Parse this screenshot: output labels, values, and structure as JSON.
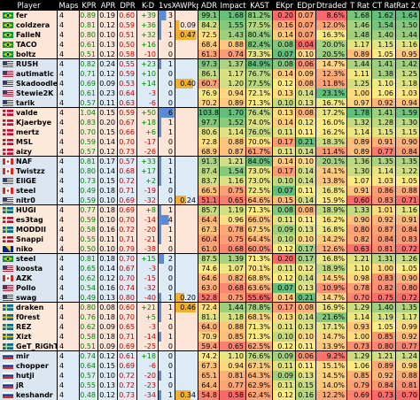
{
  "header": [
    "Player",
    "Maps",
    "KPR",
    "APR",
    "DPR",
    "K-D",
    "1vsX",
    "AWPkpr",
    "ADR",
    "Impact",
    "KAST",
    "EKpr",
    "EDpr",
    "Dtraded%",
    "T Rat",
    "CT Rat",
    "Rat 2.0"
  ],
  "players": [
    {
      "team": 1,
      "name": "fer",
      "flag": "br",
      "maps": "4",
      "kpr": "0.89",
      "apr": "0.19",
      "dpr": "0.60",
      "kd": "+39",
      "kds": "pos",
      "onevx": "3",
      "awp": "",
      "adr": "99.1",
      "impact": "1.68",
      "kast": "81.2%",
      "ekpr": "0.20",
      "edpr": "0.07",
      "dtr": "8.6%",
      "trat": "1.68",
      "ctrat": "1.62",
      "rat": "1.64"
    },
    {
      "team": 1,
      "name": "coldzera",
      "flag": "br",
      "maps": "4",
      "kpr": "0.81",
      "apr": "0.12",
      "dpr": "0.59",
      "kd": "+36",
      "kds": "pos",
      "onevx": "1",
      "awp": "0.09",
      "adr": "84.2",
      "impact": "1.55",
      "kast": "77.5%",
      "ekpr": "0.16",
      "edpr": "0.07",
      "dtr": "12.0%",
      "trat": "1.46",
      "ctrat": "1.54",
      "rat": "1.50"
    },
    {
      "team": 1,
      "name": "FalleN",
      "flag": "br",
      "maps": "4",
      "kpr": "0.80",
      "apr": "0.10",
      "dpr": "0.51",
      "kd": "+32",
      "kds": "pos",
      "onevx": "1",
      "awp": "0.47",
      "adr": "72.5",
      "impact": "1.43",
      "kast": "80.4%",
      "ekpr": "0.14",
      "edpr": "0.07",
      "dtr": "16.3%",
      "trat": "1.48",
      "ctrat": "1.40",
      "rat": "1.44"
    },
    {
      "team": 1,
      "name": "TACO",
      "flag": "br",
      "maps": "4",
      "kpr": "0.61",
      "apr": "0.13",
      "dpr": "0.50",
      "kd": "+16",
      "kds": "pos",
      "onevx": "0",
      "awp": "",
      "adr": "68.4",
      "impact": "0.88",
      "kast": "82.4%",
      "ekpr": "0.08",
      "edpr": "0.04",
      "dtr": "20.0%",
      "trat": "1.17",
      "ctrat": "1.15",
      "rat": "1.16"
    },
    {
      "team": 1,
      "name": "boltz",
      "flag": "br",
      "maps": "4",
      "kpr": "0.51",
      "apr": "0.12",
      "dpr": "0.58",
      "kd": "-10",
      "kds": "neg",
      "onevx": "0",
      "awp": "",
      "adr": "61.3",
      "impact": "0.74",
      "kast": "73.3%",
      "ekpr": "0.07",
      "edpr": "0.10",
      "dtr": "20.5%",
      "trat": "0.89",
      "ctrat": "1.05",
      "rat": "0.95"
    },
    {
      "team": 2,
      "name": "RUSH",
      "flag": "us",
      "maps": "4",
      "kpr": "0.82",
      "apr": "0.24",
      "dpr": "0.55",
      "kd": "+23",
      "kds": "pos",
      "onevx": "1",
      "awp": "",
      "adr": "97.3",
      "impact": "1.37",
      "kast": "84.9%",
      "ekpr": "0.08",
      "edpr": "0.06",
      "dtr": "14.7%",
      "trat": "1.44",
      "ctrat": "1.41",
      "rat": "1.42"
    },
    {
      "team": 2,
      "name": "autimatic",
      "flag": "us",
      "maps": "4",
      "kpr": "0.71",
      "apr": "0.12",
      "dpr": "0.59",
      "kd": "+10",
      "kds": "pos",
      "onevx": "0",
      "awp": "",
      "adr": "86.1",
      "impact": "1.17",
      "kast": "76.7%",
      "ekpr": "0.14",
      "edpr": "0.09",
      "dtr": "12.3%",
      "trat": "1.11",
      "ctrat": "1.38",
      "rat": "1.25"
    },
    {
      "team": 2,
      "name": "Skadoodle",
      "flag": "us",
      "maps": "4",
      "kpr": "0.69",
      "apr": "0.09",
      "dpr": "0.53",
      "kd": "+14",
      "kds": "pos",
      "onevx": "0",
      "awp": "0.40",
      "adr": "60.7",
      "impact": "1.20",
      "kast": "77.5%",
      "ekpr": "0.12",
      "edpr": "0.08",
      "dtr": "11.8%",
      "trat": "1.25",
      "ctrat": "1.10",
      "rat": "1.18"
    },
    {
      "team": 2,
      "name": "Stewie2K",
      "flag": "us",
      "maps": "4",
      "kpr": "0.61",
      "apr": "0.23",
      "dpr": "0.64",
      "kd": "-3",
      "kds": "neg",
      "onevx": "0",
      "awp": "",
      "adr": "76.9",
      "impact": "0.94",
      "kast": "72.1%",
      "ekpr": "0.13",
      "edpr": "0.14",
      "dtr": "23.1%",
      "trat": "1.00",
      "ctrat": "1.06",
      "rat": "1.03"
    },
    {
      "team": 2,
      "name": "tarik",
      "flag": "us",
      "maps": "4",
      "kpr": "0.57",
      "apr": "0.11",
      "dpr": "0.63",
      "kd": "-6",
      "kds": "neg",
      "onevx": "0",
      "awp": "",
      "adr": "70.2",
      "impact": "0.89",
      "kast": "71.3%",
      "ekpr": "0.10",
      "edpr": "0.13",
      "dtr": "16.7%",
      "trat": "0.97",
      "ctrat": "0.92",
      "rat": "0.94"
    },
    {
      "team": 3,
      "name": "valde",
      "flag": "dk",
      "maps": "4",
      "kpr": "1.04",
      "apr": "0.15",
      "dpr": "0.59",
      "kd": "+50",
      "kds": "pos",
      "onevx": "6",
      "awp": "",
      "adr": "103.8",
      "impact": "1.70",
      "kast": "76.4%",
      "ekpr": "0.13",
      "edpr": "0.08",
      "dtr": "17.2%",
      "trat": "1.78",
      "ctrat": "1.41",
      "rat": "1.59"
    },
    {
      "team": 3,
      "name": "Kjaerbye",
      "flag": "dk",
      "maps": "4",
      "kpr": "0.83",
      "apr": "0.20",
      "dpr": "0.67",
      "kd": "+18",
      "kds": "pos",
      "onevx": "1",
      "awp": "",
      "adr": "97.7",
      "impact": "1.52",
      "kast": "74.0%",
      "ekpr": "0.14",
      "edpr": "0.12",
      "dtr": "16.0%",
      "trat": "1.32",
      "ctrat": "1.28",
      "rat": "1.30"
    },
    {
      "team": 3,
      "name": "mertz",
      "flag": "dk",
      "maps": "4",
      "kpr": "0.70",
      "apr": "0.15",
      "dpr": "0.66",
      "kd": "+6",
      "kds": "pos",
      "onevx": "1",
      "awp": "",
      "adr": "80.6",
      "impact": "1.14",
      "kast": "76.0%",
      "ekpr": "0.11",
      "edpr": "0.11",
      "dtr": "16.2%",
      "trat": "1.14",
      "ctrat": "1.15",
      "rat": "1.15"
    },
    {
      "team": 3,
      "name": "MSL",
      "flag": "dk",
      "maps": "4",
      "kpr": "0.59",
      "apr": "0.14",
      "dpr": "0.70",
      "kd": "-17",
      "kds": "neg",
      "onevx": "0",
      "awp": "",
      "adr": "72.8",
      "impact": "0.88",
      "kast": "70.0%",
      "ekpr": "0.17",
      "edpr": "0.21",
      "dtr": "18.3%",
      "trat": "0.89",
      "ctrat": "0.91",
      "rat": "0.90"
    },
    {
      "team": 3,
      "name": "aizy",
      "flag": "dk",
      "maps": "4",
      "kpr": "0.57",
      "apr": "0.12",
      "dpr": "0.73",
      "kd": "-26",
      "kds": "neg",
      "onevx": "0",
      "awp": "",
      "adr": "68.9",
      "impact": "0.87",
      "kast": "61.7%",
      "ekpr": "0.11",
      "edpr": "0.14",
      "dtr": "11.4%",
      "trat": "0.89",
      "ctrat": "0.77",
      "rat": "0.84"
    },
    {
      "team": 4,
      "name": "NAF",
      "flag": "ca",
      "maps": "4",
      "kpr": "0.81",
      "apr": "0.17",
      "dpr": "0.57",
      "kd": "+33",
      "kds": "pos",
      "onevx": "1",
      "awp": "",
      "adr": "91.3",
      "impact": "1.21",
      "kast": "84.0%",
      "ekpr": "0.14",
      "edpr": "0.10",
      "dtr": "20.1%",
      "trat": "1.36",
      "ctrat": "1.35",
      "rat": "1.35"
    },
    {
      "team": 4,
      "name": "Twistzz",
      "flag": "ca",
      "maps": "4",
      "kpr": "0.80",
      "apr": "0.14",
      "dpr": "0.68",
      "kd": "+17",
      "kds": "pos",
      "onevx": "1",
      "awp": "",
      "adr": "87.4",
      "impact": "1.54",
      "kast": "73.0%",
      "ekpr": "0.17",
      "edpr": "0.14",
      "dtr": "14.1%",
      "trat": "1.30",
      "ctrat": "1.14",
      "rat": "1.22"
    },
    {
      "team": 4,
      "name": "EliGE",
      "flag": "us",
      "maps": "4",
      "kpr": "0.73",
      "apr": "0.15",
      "dpr": "0.72",
      "kd": "+2",
      "kds": "pos",
      "onevx": "1",
      "awp": "",
      "adr": "83.7",
      "impact": "1.16",
      "kast": "73.0%",
      "ekpr": "0.10",
      "edpr": "0.14",
      "dtr": "13.8%",
      "trat": "1.07",
      "ctrat": "1.03",
      "rat": "1.05"
    },
    {
      "team": 4,
      "name": "steel",
      "flag": "ca",
      "maps": "4",
      "kpr": "0.49",
      "apr": "0.18",
      "dpr": "0.71",
      "kd": "-19",
      "kds": "neg",
      "onevx": "0",
      "awp": "",
      "adr": "66.5",
      "impact": "0.75",
      "kast": "72.5%",
      "ekpr": "0.07",
      "edpr": "0.11",
      "dtr": "16.8%",
      "trat": "0.91",
      "ctrat": "0.86",
      "rat": "0.88"
    },
    {
      "team": 4,
      "name": "nitr0",
      "flag": "us",
      "maps": "4",
      "kpr": "0.59",
      "apr": "0.10",
      "dpr": "0.69",
      "kd": "-32",
      "kds": "neg",
      "onevx": "0",
      "awp": "0.24",
      "adr": "51.1",
      "impact": "0.65",
      "kast": "64.6%",
      "ekpr": "0.15",
      "edpr": "0.14",
      "dtr": "15.9%",
      "trat": "0.60",
      "ctrat": "0.83",
      "rat": "0.71"
    },
    {
      "team": 5,
      "name": "HUGI",
      "flag": "se",
      "maps": "4",
      "kpr": "0.77",
      "apr": "0.18",
      "dpr": "0.69",
      "kd": "+8",
      "kds": "pos",
      "onevx": "1",
      "awp": "",
      "adr": "85.7",
      "impact": "1.19",
      "kast": "71.3%",
      "ekpr": "0.08",
      "edpr": "0.08",
      "dtr": "18.9%",
      "trat": "1.33",
      "ctrat": "1.01",
      "rat": "1.16"
    },
    {
      "team": 5,
      "name": "es3tag",
      "flag": "dk",
      "maps": "4",
      "kpr": "0.59",
      "apr": "0.10",
      "dpr": "0.70",
      "kd": "-14",
      "kds": "neg",
      "onevx": "4",
      "awp": "",
      "adr": "64.4",
      "impact": "0.96",
      "kast": "66.0%",
      "ekpr": "0.11",
      "edpr": "0.11",
      "dtr": "16.2%",
      "trat": "0.90",
      "ctrat": "0.92",
      "rat": "0.91"
    },
    {
      "team": 5,
      "name": "MODDII",
      "flag": "se",
      "maps": "4",
      "kpr": "0.58",
      "apr": "0.16",
      "dpr": "0.72",
      "kd": "-20",
      "kds": "neg",
      "onevx": "1",
      "awp": "",
      "adr": "67.3",
      "impact": "0.78",
      "kast": "67.5%",
      "ekpr": "0.09",
      "edpr": "0.13",
      "dtr": "16.8%",
      "trat": "0.80",
      "ctrat": "0.87",
      "rat": "0.84"
    },
    {
      "team": 5,
      "name": "Snappi",
      "flag": "dk",
      "maps": "4",
      "kpr": "0.55",
      "apr": "0.11",
      "dpr": "0.71",
      "kd": "-21",
      "kds": "neg",
      "onevx": "1",
      "awp": "",
      "adr": "60.4",
      "impact": "0.75",
      "kast": "64.4%",
      "ekpr": "0.10",
      "edpr": "0.10",
      "dtr": "14.2%",
      "trat": "0.82",
      "ctrat": "0.84",
      "rat": "0.83"
    },
    {
      "team": 5,
      "name": "niko",
      "flag": "ba",
      "maps": "4",
      "kpr": "0.50",
      "apr": "0.10",
      "dpr": "0.79",
      "kd": "-38",
      "kds": "neg",
      "onevx": "0",
      "awp": "",
      "adr": "61.0",
      "impact": "0.68",
      "kast": "60.0%",
      "ekpr": "0.12",
      "edpr": "0.17",
      "dtr": "12.6%",
      "trat": "0.63",
      "ctrat": "0.81",
      "rat": "0.72"
    },
    {
      "team": 6,
      "name": "steel",
      "flag": "br",
      "maps": "4",
      "kpr": "0.81",
      "apr": "0.18",
      "dpr": "0.70",
      "kd": "+15",
      "kds": "pos",
      "onevx": "2",
      "awp": "",
      "adr": "87.5",
      "impact": "1.39",
      "kast": "71.3%",
      "ekpr": "0.20",
      "edpr": "0.17",
      "dtr": "16.8%",
      "trat": "1.21",
      "ctrat": "1.31",
      "rat": "1.26"
    },
    {
      "team": 6,
      "name": "koosta",
      "flag": "us",
      "maps": "4",
      "kpr": "0.65",
      "apr": "0.14",
      "dpr": "0.67",
      "kd": "-3",
      "kds": "neg",
      "onevx": "0",
      "awp": "",
      "adr": "74.6",
      "impact": "1.07",
      "kast": "70.1%",
      "ekpr": "0.11",
      "edpr": "0.12",
      "dtr": "18.9%",
      "trat": "1.10",
      "ctrat": "1.00",
      "rat": "1.05"
    },
    {
      "team": 6,
      "name": "AZK",
      "flag": "ca",
      "maps": "4",
      "kpr": "0.62",
      "apr": "0.12",
      "dpr": "0.70",
      "kd": "-15",
      "kds": "neg",
      "onevx": "0",
      "awp": "",
      "adr": "64.6",
      "impact": "0.82",
      "kast": "68.8%",
      "ekpr": "0.12",
      "edpr": "0.14",
      "dtr": "14.5%",
      "trat": "0.98",
      "ctrat": "0.83",
      "rat": "0.90"
    },
    {
      "team": 6,
      "name": "Pollo",
      "flag": "us",
      "maps": "4",
      "kpr": "0.54",
      "apr": "0.16",
      "dpr": "0.74",
      "kd": "-32",
      "kds": "neg",
      "onevx": "0",
      "awp": "",
      "adr": "63.0",
      "impact": "0.68",
      "kast": "63.6%",
      "ekpr": "0.07",
      "edpr": "0.13",
      "dtr": "10.9%",
      "trat": "0.78",
      "ctrat": "0.82",
      "rat": "0.80"
    },
    {
      "team": 6,
      "name": "swag",
      "flag": "us",
      "maps": "4",
      "kpr": "0.49",
      "apr": "0.13",
      "dpr": "0.80",
      "kd": "-40",
      "kds": "neg",
      "onevx": "1",
      "awp": "0.20",
      "adr": "52.8",
      "impact": "0.75",
      "kast": "55.6%",
      "ekpr": "0.14",
      "edpr": "0.21",
      "dtr": "14.7%",
      "trat": "0.70",
      "ctrat": "0.75",
      "rat": "0.72"
    },
    {
      "team": 7,
      "name": "draken",
      "flag": "se",
      "maps": "4",
      "kpr": "0.80",
      "apr": "0.08",
      "dpr": "0.60",
      "kd": "+21",
      "kds": "pos",
      "onevx": "1",
      "awp": "0.46",
      "adr": "72.4",
      "impact": "1.44",
      "kast": "78.8%",
      "ekpr": "0.17",
      "edpr": "0.08",
      "dtr": "16.9%",
      "trat": "1.29",
      "ctrat": "1.40",
      "rat": "1.35"
    },
    {
      "team": 7,
      "name": "f0rest",
      "flag": "se",
      "maps": "4",
      "kpr": "0.76",
      "apr": "0.18",
      "dpr": "0.70",
      "kd": "+5",
      "kds": "pos",
      "onevx": "1",
      "awp": "",
      "adr": "81.1",
      "impact": "1.18",
      "kast": "68.1%",
      "ekpr": "0.13",
      "edpr": "0.14",
      "dtr": "21.6%",
      "trat": "1.14",
      "ctrat": "1.19",
      "rat": "1.17"
    },
    {
      "team": 7,
      "name": "REZ",
      "flag": "se",
      "maps": "4",
      "kpr": "0.62",
      "apr": "0.09",
      "dpr": "0.65",
      "kd": "-3",
      "kds": "neg",
      "onevx": "0",
      "awp": "",
      "adr": "64.0",
      "impact": "0.88",
      "kast": "71.3%",
      "ekpr": "0.11",
      "edpr": "0.13",
      "dtr": "17.1%",
      "trat": "0.93",
      "ctrat": "1.05",
      "rat": "0.99"
    },
    {
      "team": 7,
      "name": "Xizt",
      "flag": "se",
      "maps": "4",
      "kpr": "0.58",
      "apr": "0.18",
      "dpr": "0.71",
      "kd": "-14",
      "kds": "neg",
      "onevx": "1",
      "awp": "",
      "adr": "70.9",
      "impact": "0.85",
      "kast": "71.3%",
      "ekpr": "0.10",
      "edpr": "0.10",
      "dtr": "14.7%",
      "trat": "1.00",
      "ctrat": "0.85",
      "rat": "0.92"
    },
    {
      "team": 7,
      "name": "GeT_RiGhT",
      "flag": "se",
      "maps": "4",
      "kpr": "0.51",
      "apr": "0.09",
      "dpr": "0.69",
      "kd": "-25",
      "kds": "neg",
      "onevx": "0",
      "awp": "",
      "adr": "59.4",
      "impact": "0.65",
      "kast": "62.5%",
      "ekpr": "0.12",
      "edpr": "0.11",
      "dtr": "13.9%",
      "trat": "0.73",
      "ctrat": "0.80",
      "rat": "0.77"
    },
    {
      "team": 8,
      "name": "mir",
      "flag": "ru",
      "maps": "4",
      "kpr": "0.74",
      "apr": "0.12",
      "dpr": "0.61",
      "kd": "+18",
      "kds": "pos",
      "onevx": "0",
      "awp": "",
      "adr": "74.2",
      "impact": "1.10",
      "kast": "76.6%",
      "ekpr": "0.09",
      "edpr": "0.06",
      "dtr": "9.2%",
      "trat": "1.29",
      "ctrat": "1.21",
      "rat": "1.24"
    },
    {
      "team": 8,
      "name": "chopper",
      "flag": "ru",
      "maps": "4",
      "kpr": "0.64",
      "apr": "0.15",
      "dpr": "0.69",
      "kd": "-6",
      "kds": "neg",
      "onevx": "0",
      "awp": "",
      "adr": "67.3",
      "impact": "0.94",
      "kast": "67.1%",
      "ekpr": "0.11",
      "edpr": "0.11",
      "dtr": "15.1%",
      "trat": "1.06",
      "ctrat": "0.89",
      "rat": "0.98"
    },
    {
      "team": 8,
      "name": "hutji",
      "flag": "ru",
      "maps": "4",
      "kpr": "0.57",
      "apr": "0.10",
      "dpr": "0.72",
      "kd": "-20",
      "kds": "neg",
      "onevx": "1",
      "awp": "",
      "adr": "65.1",
      "impact": "0.81",
      "kast": "64.3%",
      "ekpr": "0.09",
      "edpr": "0.13",
      "dtr": "14.5%",
      "trat": "0.85",
      "ctrat": "0.92",
      "rat": "0.88"
    },
    {
      "team": 8,
      "name": "jR",
      "flag": "ru",
      "maps": "4",
      "kpr": "0.55",
      "apr": "0.13",
      "dpr": "0.72",
      "kd": "-23",
      "kds": "neg",
      "onevx": "0",
      "awp": "",
      "adr": "64.4",
      "impact": "0.77",
      "kast": "62.9%",
      "ekpr": "0.11",
      "edpr": "0.15",
      "dtr": "14.0%",
      "trat": "0.79",
      "ctrat": "0.84",
      "rat": "0.81"
    },
    {
      "team": 8,
      "name": "keshandr",
      "flag": "ru",
      "maps": "4",
      "kpr": "0.48",
      "apr": "0.12",
      "dpr": "0.73",
      "kd": "-34",
      "kds": "neg",
      "onevx": "1",
      "awp": "0.34",
      "adr": "54.8",
      "impact": "0.58",
      "kast": "62.4%",
      "ekpr": "0.12",
      "edpr": "0.16",
      "dtr": "12.2%",
      "trat": "0.69",
      "ctrat": "0.73",
      "rat": "0.70"
    }
  ]
}
